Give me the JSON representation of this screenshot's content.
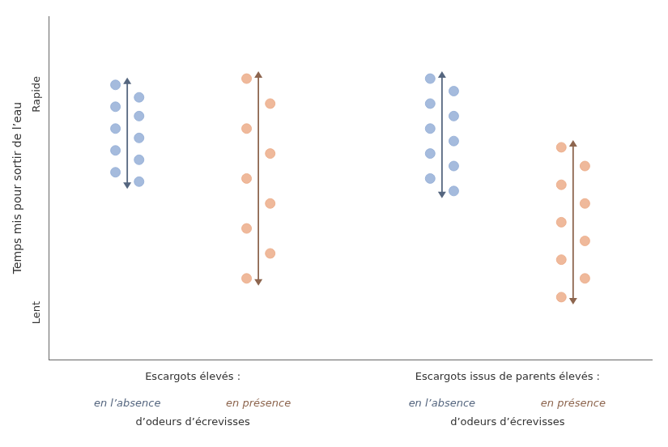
{
  "chart_data": {
    "type": "strip",
    "ylabel": "Temps mis pour sortir de l’eau",
    "categories": [
      "en l’absence",
      "en présence",
      "en l’absence",
      "en présence"
    ],
    "colors": [
      "#8EAAD4",
      "#EBA882",
      "#8EAAD4",
      "#EBA882"
    ],
    "values": [
      [
        8.8,
        8.4,
        8.1,
        7.8,
        7.4,
        7.1,
        6.7,
        6.4,
        6.0,
        5.7
      ],
      [
        9.0,
        8.2,
        7.4,
        6.6,
        5.8,
        5.0,
        4.2,
        3.4,
        2.6
      ],
      [
        9.0,
        8.6,
        8.2,
        7.8,
        7.4,
        7.0,
        6.6,
        6.2,
        5.8,
        5.4
      ],
      [
        6.8,
        6.2,
        5.6,
        5.0,
        4.4,
        3.8,
        3.2,
        2.6,
        2.0
      ]
    ],
    "groups": [
      {
        "label": "Escargots élevés :",
        "note": "d’odeurs d’écrevisses"
      },
      {
        "label": "Escargots issus de parents élevés :",
        "note": "d’odeurs d’écrevisses"
      }
    ],
    "annotations": [
      {
        "text": "Rapide",
        "y": 8.5
      },
      {
        "text": "Lent",
        "y": 1.5
      }
    ],
    "ylim": [
      0,
      11
    ],
    "yticks": [],
    "tick_labels": false,
    "grid": false,
    "marker": "circle"
  }
}
